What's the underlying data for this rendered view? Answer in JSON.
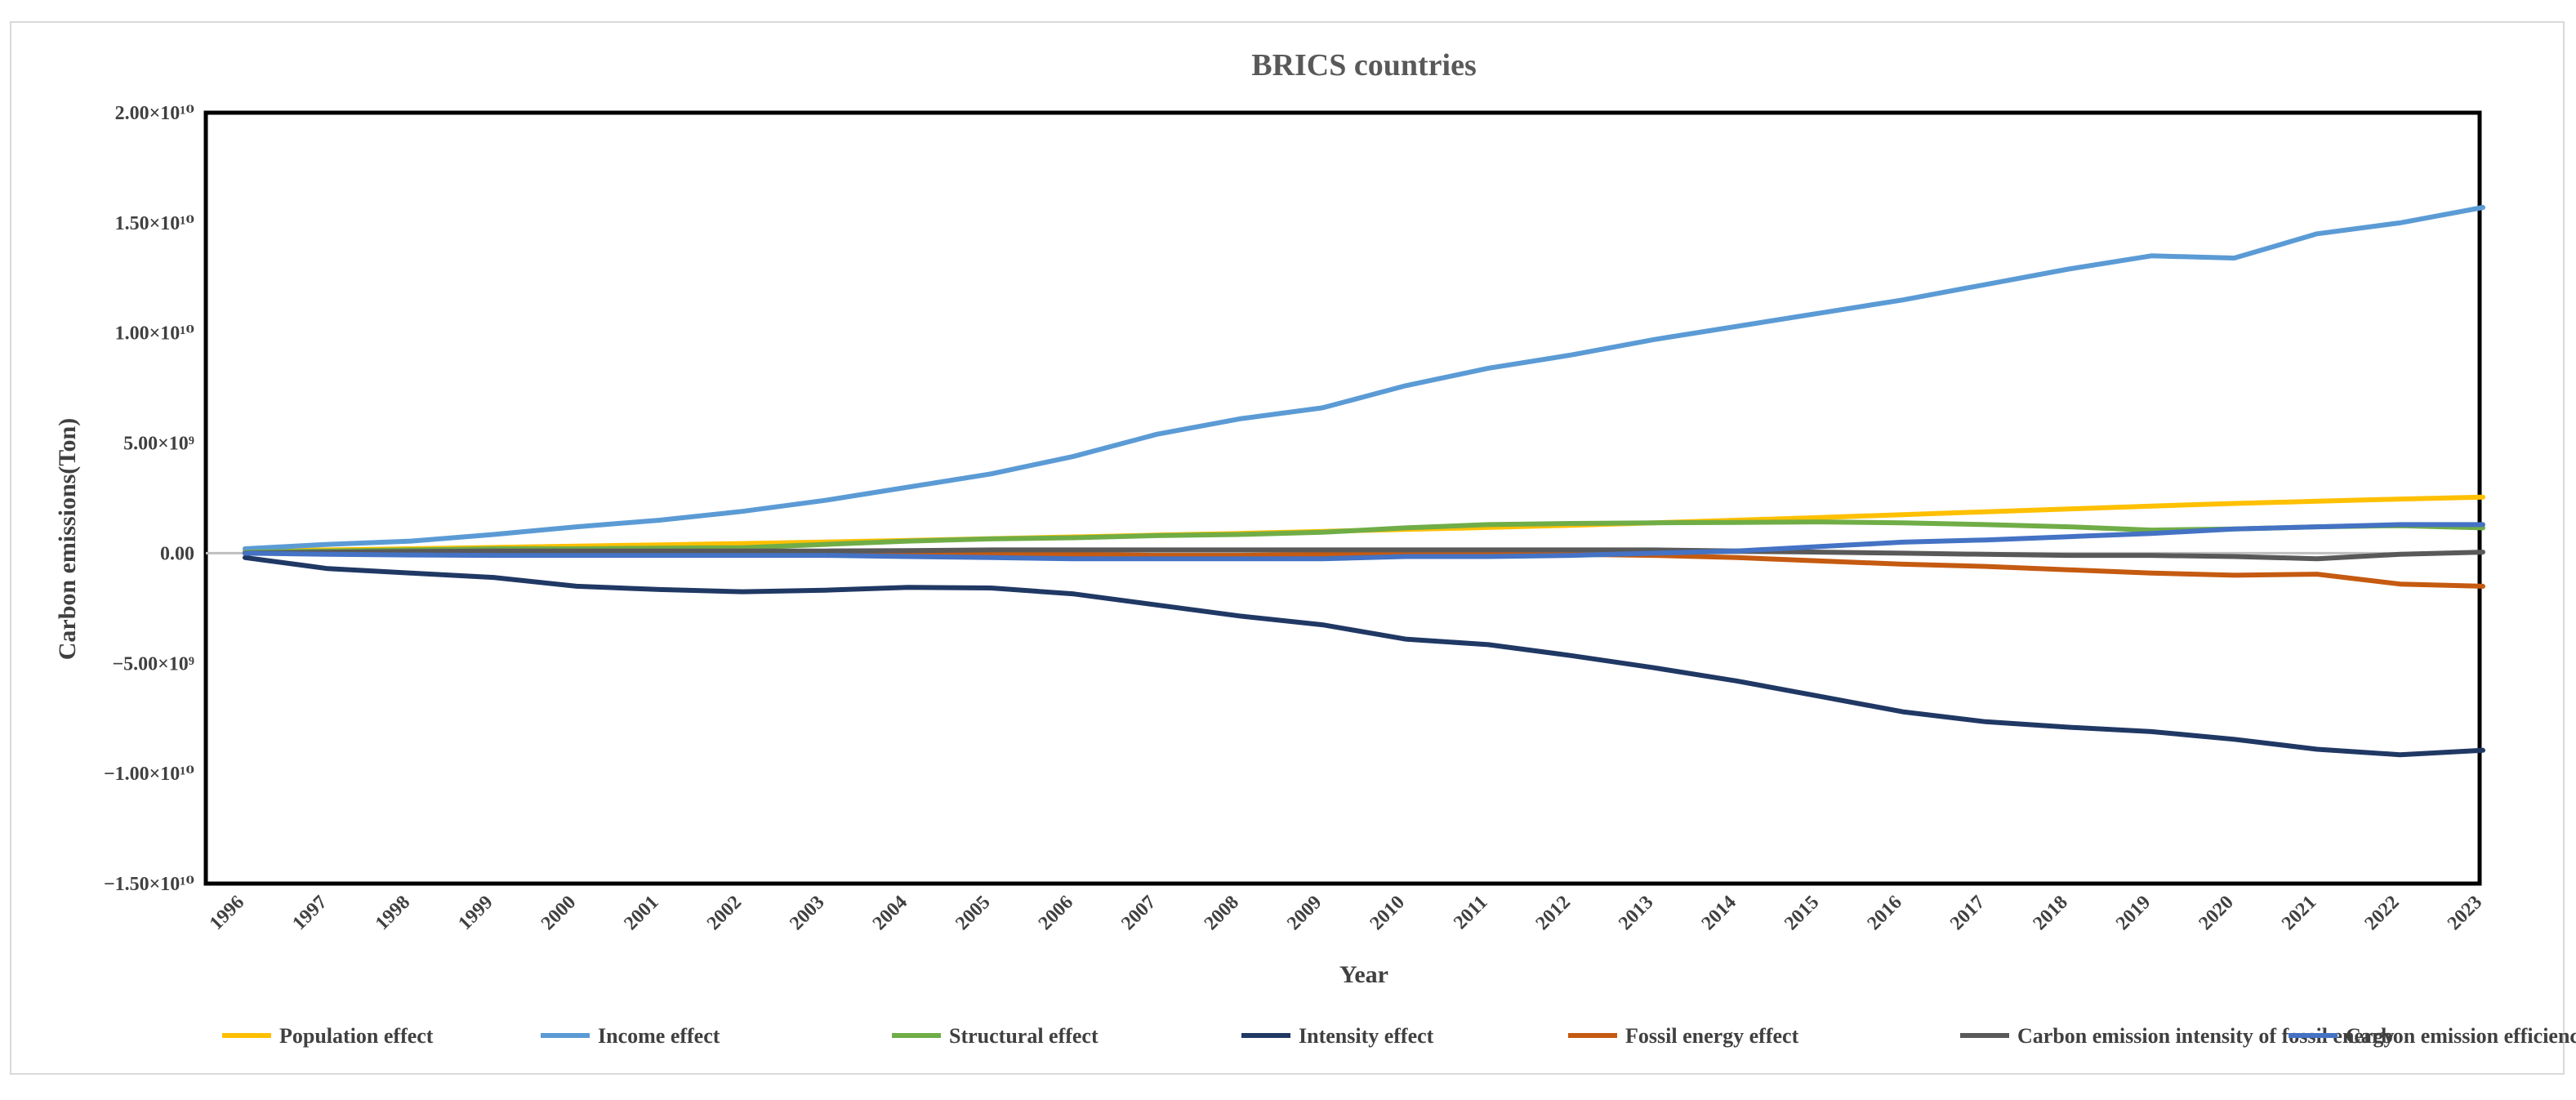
{
  "chart_data": {
    "type": "line",
    "title": "BRICS countries",
    "xlabel": "Year",
    "ylabel": "Carbon emissions(Ton)",
    "ylim": [
      -15000000000.0,
      20000000000.0
    ],
    "ytick_values": [
      20000000000.0,
      15000000000.0,
      10000000000.0,
      5000000000.0,
      0,
      -5000000000.0,
      -10000000000.0,
      -15000000000.0
    ],
    "ytick_labels": [
      "2.00×10¹⁰",
      "1.50×10¹⁰",
      "1.00×10¹⁰",
      "5.00×10⁹",
      "0.00",
      "−5.00×10⁹",
      "−1.00×10¹⁰",
      "−1.50×10¹⁰"
    ],
    "x": [
      "1996",
      "1997",
      "1998",
      "1999",
      "2000",
      "2001",
      "2002",
      "2003",
      "2004",
      "2005",
      "2006",
      "2007",
      "2008",
      "2009",
      "2010",
      "2011",
      "2012",
      "2013",
      "2014",
      "2015",
      "2016",
      "2017",
      "2018",
      "2019",
      "2020",
      "2021",
      "2022",
      "2023"
    ],
    "grid": false,
    "legend_position": "bottom",
    "series": [
      {
        "name": "Population effect",
        "color": "#FFC000",
        "values": [
          100000000.0,
          150000000.0,
          200000000.0,
          260000000.0,
          320000000.0,
          380000000.0,
          440000000.0,
          510000000.0,
          580000000.0,
          660000000.0,
          740000000.0,
          820000000.0,
          900000000.0,
          990000000.0,
          1080000000.0,
          1170000000.0,
          1270000000.0,
          1380000000.0,
          1500000000.0,
          1620000000.0,
          1750000000.0,
          1880000000.0,
          2010000000.0,
          2140000000.0,
          2260000000.0,
          2360000000.0,
          2460000000.0,
          2550000000.0
        ]
      },
      {
        "name": "Income effect",
        "color": "#5B9BD5",
        "values": [
          200000000.0,
          400000000.0,
          550000000.0,
          850000000.0,
          1200000000.0,
          1500000000.0,
          1900000000.0,
          2400000000.0,
          3000000000.0,
          3600000000.0,
          4400000000.0,
          5400000000.0,
          6100000000.0,
          6600000000.0,
          7600000000.0,
          8400000000.0,
          9000000000.0,
          9700000000.0,
          10300000000.0,
          10900000000.0,
          11500000000.0,
          12200000000.0,
          12900000000.0,
          13500000000.0,
          13400000000.0,
          14500000000.0,
          15000000000.0,
          15700000000.0
        ]
      },
      {
        "name": "Structural effect",
        "color": "#70AD47",
        "values": [
          50000000.0,
          100000000.0,
          150000000.0,
          200000000.0,
          200000000.0,
          230000000.0,
          250000000.0,
          400000000.0,
          550000000.0,
          650000000.0,
          700000000.0,
          800000000.0,
          850000000.0,
          950000000.0,
          1150000000.0,
          1300000000.0,
          1350000000.0,
          1380000000.0,
          1400000000.0,
          1420000000.0,
          1380000000.0,
          1300000000.0,
          1200000000.0,
          1050000000.0,
          1100000000.0,
          1200000000.0,
          1250000000.0,
          1150000000.0
        ]
      },
      {
        "name": "Intensity effect",
        "color": "#203864",
        "values": [
          -200000000.0,
          -700000000.0,
          -900000000.0,
          -1100000000.0,
          -1500000000.0,
          -1650000000.0,
          -1750000000.0,
          -1680000000.0,
          -1550000000.0,
          -1580000000.0,
          -1850000000.0,
          -2350000000.0,
          -2850000000.0,
          -3250000000.0,
          -3900000000.0,
          -4150000000.0,
          -4650000000.0,
          -5200000000.0,
          -5800000000.0,
          -6500000000.0,
          -7200000000.0,
          -7650000000.0,
          -7900000000.0,
          -8100000000.0,
          -8450000000.0,
          -8900000000.0,
          -9150000000.0,
          -8950000000.0
        ]
      },
      {
        "name": "Fossil energy effect",
        "color": "#C55A11",
        "values": [
          0,
          0,
          20000000.0,
          30000000.0,
          40000000.0,
          50000000.0,
          60000000.0,
          40000000.0,
          20000000.0,
          0,
          -50000000.0,
          -100000000.0,
          -100000000.0,
          -50000000.0,
          0,
          -50000000.0,
          -50000000.0,
          -100000000.0,
          -200000000.0,
          -350000000.0,
          -500000000.0,
          -600000000.0,
          -750000000.0,
          -900000000.0,
          -1000000000.0,
          -950000000.0,
          -1400000000.0,
          -1500000000.0
        ]
      },
      {
        "name": "Carbon emission intensity of fossil energy",
        "color": "#595959",
        "values": [
          0,
          50000000.0,
          80000000.0,
          100000000.0,
          100000000.0,
          100000000.0,
          100000000.0,
          100000000.0,
          120000000.0,
          150000000.0,
          150000000.0,
          150000000.0,
          150000000.0,
          150000000.0,
          150000000.0,
          150000000.0,
          150000000.0,
          150000000.0,
          100000000.0,
          50000000.0,
          0,
          -50000000.0,
          -100000000.0,
          -100000000.0,
          -150000000.0,
          -250000000.0,
          -50000000.0,
          50000000.0
        ]
      },
      {
        "name": "Carbon emission efficiency",
        "color": "#4472C4",
        "values": [
          0,
          -50000000.0,
          -80000000.0,
          -100000000.0,
          -100000000.0,
          -100000000.0,
          -100000000.0,
          -100000000.0,
          -150000000.0,
          -200000000.0,
          -250000000.0,
          -250000000.0,
          -250000000.0,
          -250000000.0,
          -150000000.0,
          -150000000.0,
          -100000000.0,
          0,
          100000000.0,
          300000000.0,
          500000000.0,
          600000000.0,
          750000000.0,
          900000000.0,
          1100000000.0,
          1200000000.0,
          1300000000.0,
          1300000000.0
        ]
      }
    ]
  }
}
